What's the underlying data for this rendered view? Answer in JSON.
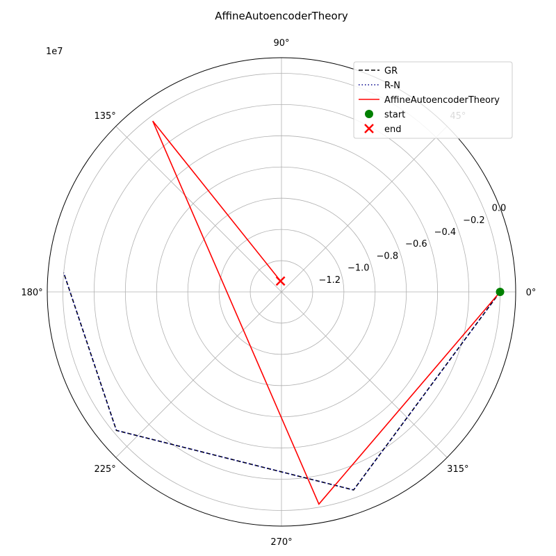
{
  "chart_data": {
    "type": "line",
    "projection": "polar",
    "title": "AffineAutoencoderTheory",
    "radial_axis": {
      "offset_label": "1e7",
      "range": [
        -1.4,
        0.1
      ],
      "ticks": [
        -1.2,
        -1.0,
        -0.8,
        -0.6,
        -0.4,
        -0.2,
        0.0
      ],
      "tick_labels": [
        "−1.2",
        "−1.0",
        "−0.8",
        "−0.6",
        "−0.4",
        "−0.2",
        "0.0"
      ],
      "label_angle_deg": 22.5
    },
    "angular_axis": {
      "ticks_deg": [
        0,
        45,
        90,
        135,
        180,
        225,
        270,
        315
      ],
      "tick_labels": [
        "0°",
        "45°",
        "90°",
        "135°",
        "180°",
        "225°",
        "270°",
        "315°"
      ]
    },
    "grid": true,
    "legend_position": "top-right",
    "series": [
      {
        "name": "GR",
        "style": "dashed",
        "color": "#000000",
        "theta_deg": [
          0,
          290,
          220,
          175
        ],
        "r": [
          0.0,
          -0.05,
          -0.02,
          0.0
        ]
      },
      {
        "name": "R-N",
        "style": "dotted",
        "color": "#00008b",
        "theta_deg": [
          0,
          290,
          220,
          175
        ],
        "r": [
          0.0,
          -0.05,
          -0.02,
          0.0
        ]
      },
      {
        "name": "AffineAutoencoderTheory",
        "style": "solid",
        "color": "#ff0000",
        "theta_deg": [
          0,
          280,
          127,
          95
        ],
        "r": [
          0.0,
          -0.02,
          -0.03,
          -1.33
        ]
      }
    ],
    "markers": [
      {
        "name": "start",
        "shape": "circle",
        "color": "#008000",
        "theta_deg": 0,
        "r": 0.0
      },
      {
        "name": "end",
        "shape": "x",
        "color": "#ff0000",
        "theta_deg": 95,
        "r": -1.33
      }
    ]
  }
}
